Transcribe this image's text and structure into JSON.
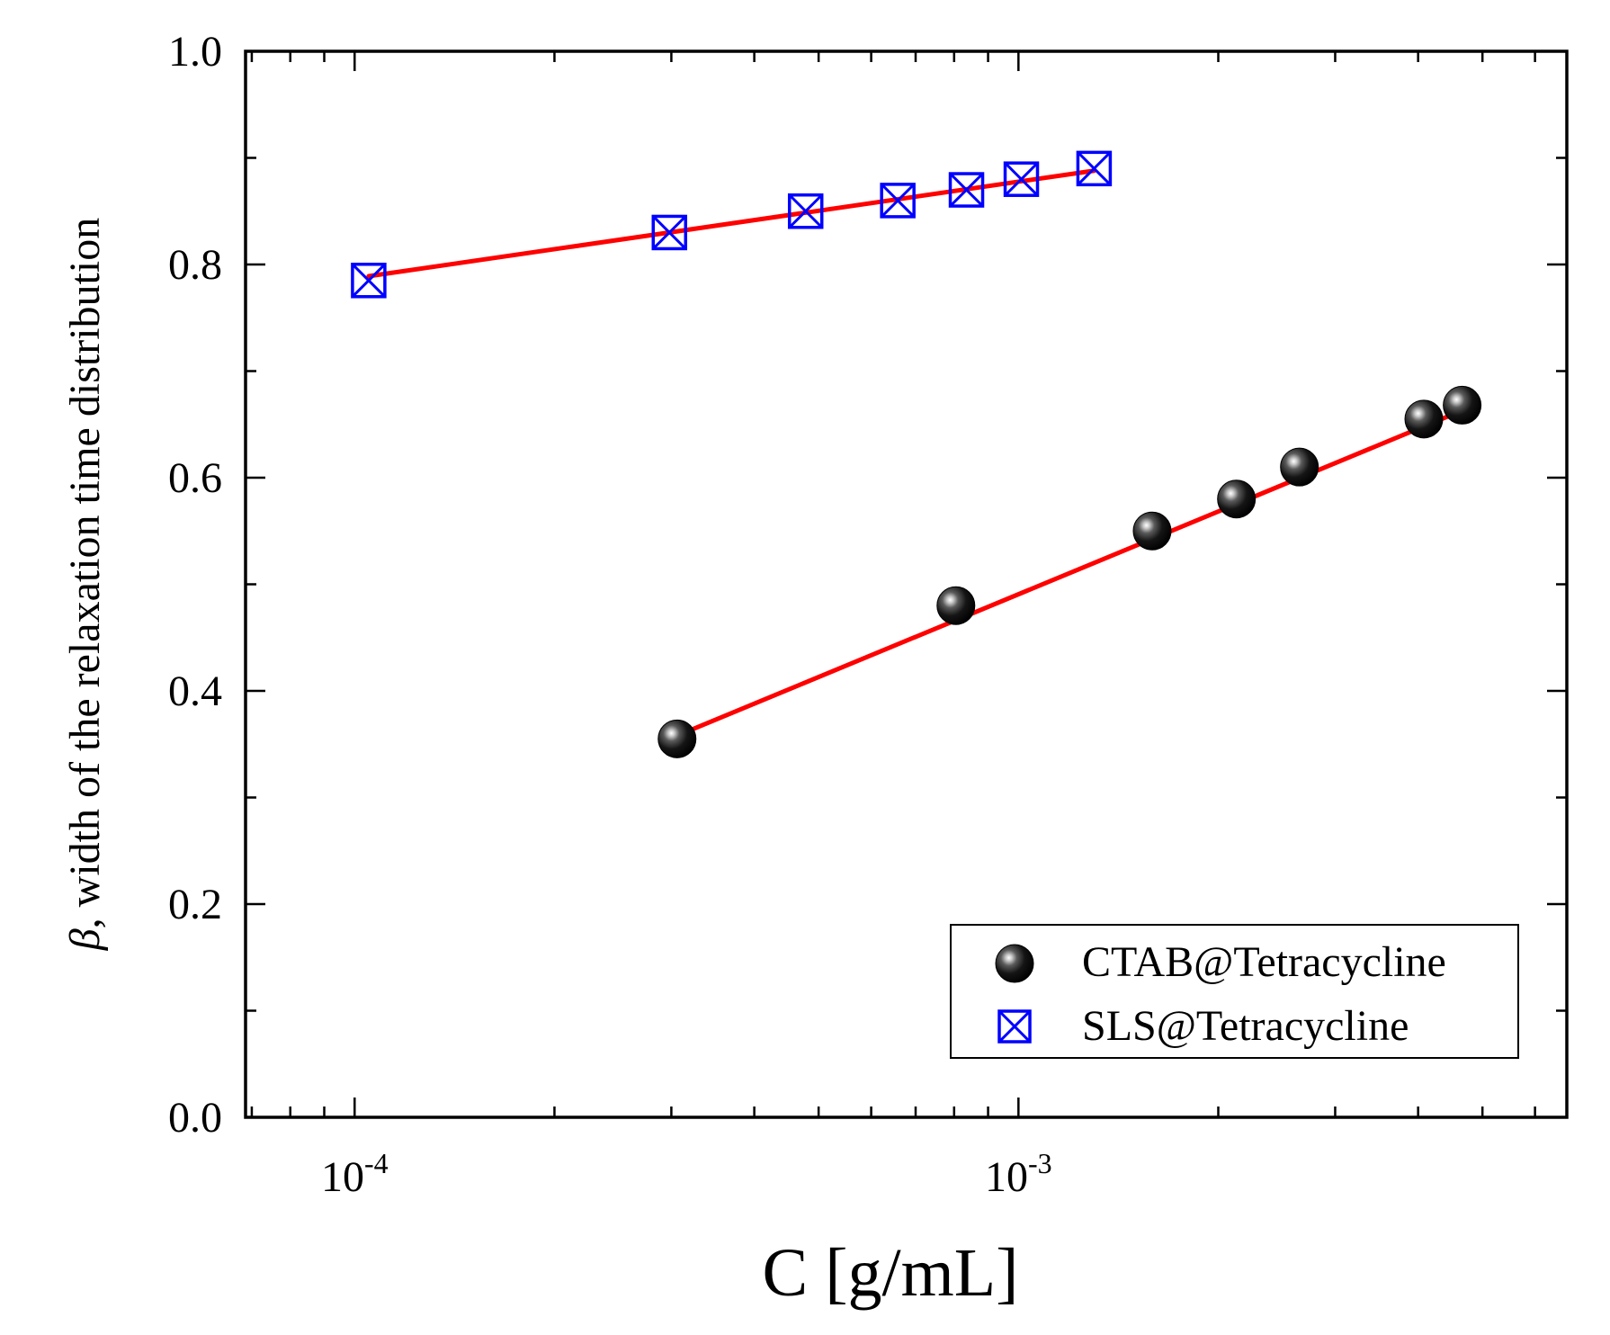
{
  "chart_data": {
    "type": "scatter",
    "xscale": "log",
    "xlim": [
      6.85e-05,
      0.0067
    ],
    "ylim": [
      0,
      1.0
    ],
    "xlabel": "C [g/mL]",
    "ylabel_symbol": "β",
    "ylabel_text": ", width of the relaxation time distribution",
    "y_ticks": [
      {
        "value": 0.0,
        "label": "0.0"
      },
      {
        "value": 0.2,
        "label": "0.2"
      },
      {
        "value": 0.4,
        "label": "0.4"
      },
      {
        "value": 0.6,
        "label": "0.6"
      },
      {
        "value": 0.8,
        "label": "0.8"
      },
      {
        "value": 1.0,
        "label": "1.0"
      }
    ],
    "x_tick_labels": [
      {
        "value": 0.0001,
        "base": "10",
        "exp": "-4"
      },
      {
        "value": 0.001,
        "base": "10",
        "exp": "-3"
      }
    ],
    "series": [
      {
        "name": "CTAB@Tetracycline",
        "marker": "sphere",
        "color": "#000000",
        "x": [
          0.000306,
          0.000805,
          0.00159,
          0.00213,
          0.00265,
          0.00408,
          0.00466
        ],
        "y": [
          0.355,
          0.48,
          0.55,
          0.58,
          0.61,
          0.655,
          0.668
        ],
        "fit": {
          "x": [
            0.000306,
            0.00466
          ],
          "y": [
            0.358,
            0.663
          ],
          "color": "#ff0000"
        }
      },
      {
        "name": "SLS@Tetracycline",
        "marker": "square-x",
        "color": "#0000ff",
        "x": [
          0.000105,
          0.000298,
          0.000478,
          0.000658,
          0.000835,
          0.00101,
          0.0013
        ],
        "y": [
          0.785,
          0.83,
          0.85,
          0.86,
          0.87,
          0.88,
          0.89
        ],
        "fit": {
          "x": [
            0.000105,
            0.0013
          ],
          "y": [
            0.789,
            0.888
          ],
          "color": "#ff0000"
        }
      }
    ],
    "legend_position": "bottom-right"
  }
}
